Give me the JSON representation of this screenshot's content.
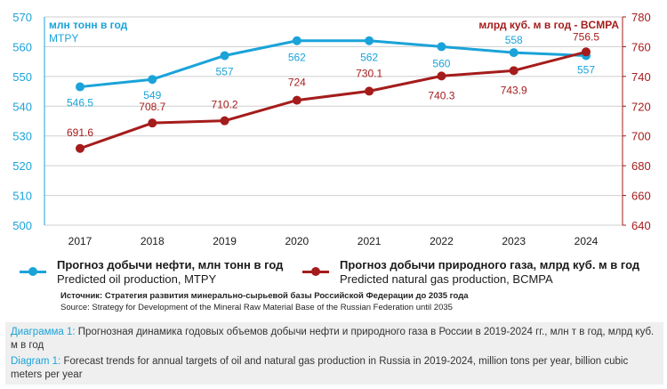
{
  "chart_data": {
    "type": "line",
    "categories": [
      "2017",
      "2018",
      "2019",
      "2020",
      "2021",
      "2022",
      "2023",
      "2024"
    ],
    "left_axis": {
      "label_line1": "млн тонн в год",
      "label_line2": "MTPY",
      "ylim": [
        500,
        570
      ],
      "ticks": [
        "500",
        "510",
        "520",
        "530",
        "540",
        "550",
        "560",
        "570"
      ],
      "color": "#1aa3d9"
    },
    "right_axis": {
      "label": "млрд куб. м в год - BCMPA",
      "ylim": [
        640,
        780
      ],
      "ticks": [
        "640",
        "660",
        "680",
        "700",
        "720",
        "740",
        "760",
        "780"
      ],
      "color": "#a51c1c"
    },
    "grid": true,
    "series": [
      {
        "name": "Прогноз добычи нефти, млн тонн в год / Predicted oil production, MTPY",
        "axis": "left",
        "color": "#1aa3d9",
        "values": [
          546.5,
          549,
          557,
          562,
          562,
          560,
          558,
          557
        ],
        "labels": [
          "546.5",
          "549",
          "557",
          "562",
          "562",
          "560",
          "558",
          "557"
        ]
      },
      {
        "name": "Прогноз добычи природного газа, млрд куб. м в год / Predicted natural gas production, BCMPA",
        "axis": "right",
        "color": "#a51c1c",
        "values": [
          691.6,
          708.7,
          710.2,
          724,
          730.1,
          740.3,
          743.9,
          756.5
        ],
        "labels": [
          "691.6",
          "708.7",
          "710.2",
          "724",
          "730.1",
          "740.3",
          "743.9",
          "756.5"
        ]
      }
    ],
    "legend_placement": "bottom"
  },
  "legend": {
    "oil_ru": "Прогноз добычи нефти, млн тонн в год",
    "oil_en": "Predicted oil production, MTPY",
    "gas_ru": "Прогноз добычи природного газа, млрд куб. м в год",
    "gas_en": "Predicted natural gas production, BCMPA"
  },
  "source": {
    "ru": "Источник: Стратегия развития минерально-сырьевой базы Российской Федерации до 2035 года",
    "en": "Source: Strategy for Development of the Mineral Raw Material Base of the Russian Federation until 2035"
  },
  "caption": {
    "ru_label": "Диаграмма 1:",
    "ru_text": " Прогнозная динамика годовых объемов добычи нефти и природного газа в России в 2019-2024 гг., млн т в год, млрд куб. м в год",
    "en_label": "Diagram 1:",
    "en_text": " Forecast trends for annual targets of oil and natural gas production in Russia in 2019-2024, million tons per year, billion cubic meters per year"
  }
}
